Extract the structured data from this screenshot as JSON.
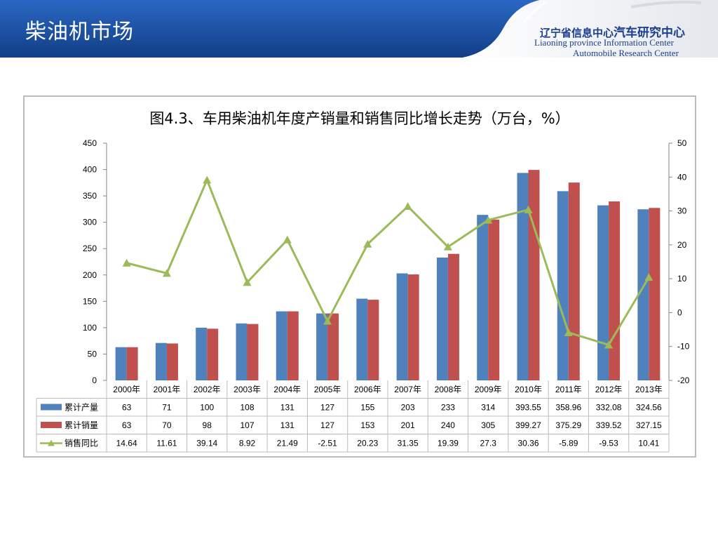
{
  "header": {
    "slide_title": "柴油机市场",
    "org_cn_prefix": "辽宁省信息中心",
    "org_cn_strong": "汽车研究中心",
    "org_en_line1": "Liaoning province Information Center",
    "org_en_line2": "Automobile Research Center"
  },
  "colors": {
    "header_blue": "#1a4fa0",
    "production": "#4f81bd",
    "sales": "#c0504d",
    "growth": "#9bbb59"
  },
  "chart_data": {
    "type": "bar",
    "title": "图4.3、车用柴油机年度产销量和销售同比增长走势（万台，%）",
    "categories": [
      "2000年",
      "2001年",
      "2002年",
      "2003年",
      "2004年",
      "2005年",
      "2006年",
      "2007年",
      "2008年",
      "2009年",
      "2010年",
      "2011年",
      "2012年",
      "2013年"
    ],
    "y_left": {
      "min": 0,
      "max": 450,
      "step": 50,
      "ticks": [
        "0",
        "50",
        "100",
        "150",
        "200",
        "250",
        "300",
        "350",
        "400",
        "450"
      ]
    },
    "y_right": {
      "min": -20,
      "max": 50,
      "step": 10,
      "ticks": [
        "-20",
        "-10",
        "0",
        "10",
        "20",
        "30",
        "40",
        "50"
      ]
    },
    "series": [
      {
        "name": "累计产量",
        "type": "bar",
        "axis": "left",
        "color": "#4f81bd",
        "values": [
          63,
          71,
          100,
          108,
          131,
          127,
          155,
          203,
          233,
          314,
          393.55,
          358.96,
          332.08,
          324.56
        ],
        "labels": [
          "63",
          "71",
          "100",
          "108",
          "131",
          "127",
          "155",
          "203",
          "233",
          "314",
          "393.55",
          "358.96",
          "332.08",
          "324.56"
        ]
      },
      {
        "name": "累计销量",
        "type": "bar",
        "axis": "left",
        "color": "#c0504d",
        "values": [
          63,
          70,
          98,
          107,
          131,
          127,
          153,
          201,
          240,
          305,
          399.27,
          375.29,
          339.52,
          327.15
        ],
        "labels": [
          "63",
          "70",
          "98",
          "107",
          "131",
          "127",
          "153",
          "201",
          "240",
          "305",
          "399.27",
          "375.29",
          "339.52",
          "327.15"
        ]
      },
      {
        "name": "销售同比",
        "type": "line",
        "axis": "right",
        "color": "#9bbb59",
        "marker": "triangle",
        "values": [
          14.64,
          11.61,
          39.14,
          8.92,
          21.49,
          -2.51,
          20.23,
          31.35,
          19.39,
          27.3,
          30.36,
          -5.89,
          -9.53,
          10.41
        ],
        "labels": [
          "14.64",
          "11.61",
          "39.14",
          "8.92",
          "21.49",
          "-2.51",
          "20.23",
          "31.35",
          "19.39",
          "27.3",
          "30.36",
          "-5.89",
          "-9.53",
          "10.41"
        ]
      }
    ],
    "data_table": true,
    "grid": false
  }
}
